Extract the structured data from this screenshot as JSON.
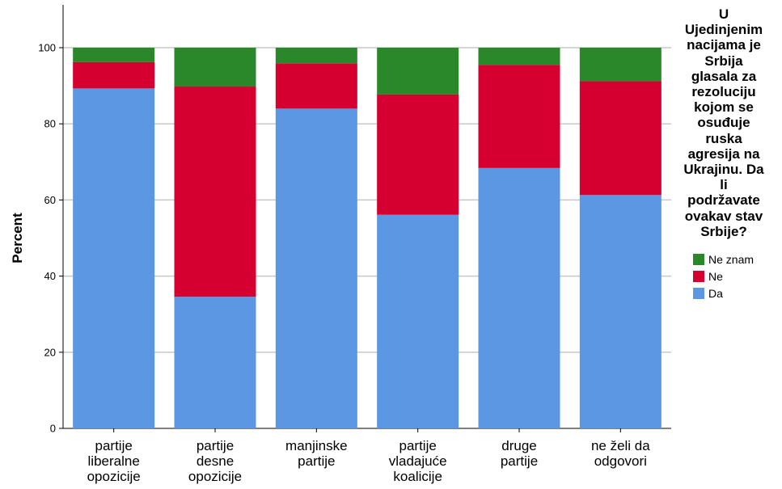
{
  "chart_data": {
    "type": "bar",
    "stacked": true,
    "categories": [
      [
        "partije",
        "liberalne",
        "opozicije"
      ],
      [
        "partije",
        "desne",
        "opozicije"
      ],
      [
        "manjinske",
        "partije"
      ],
      [
        "partije",
        "vladajuće",
        "koalicije"
      ],
      [
        "druge",
        "partije"
      ],
      [
        "ne želi da",
        "odgovori"
      ]
    ],
    "series": [
      {
        "name": "Da",
        "color": "#5b97e3",
        "values": [
          89.3,
          34.6,
          84.0,
          56.1,
          68.4,
          61.3
        ]
      },
      {
        "name": "Ne",
        "color": "#d5002f",
        "values": [
          6.9,
          55.2,
          11.9,
          31.6,
          27.1,
          29.9
        ]
      },
      {
        "name": "Ne znam",
        "color": "#2b882a",
        "values": [
          3.8,
          10.2,
          4.1,
          12.3,
          4.5,
          8.8
        ]
      }
    ],
    "ylabel": "Percent",
    "ylim": [
      0,
      100
    ],
    "yticks": [
      0,
      20,
      40,
      60,
      80,
      100
    ],
    "grid": true,
    "legend_placement": "right",
    "legend_title_lines": [
      "U",
      "Ujedinjenim",
      "nacijama je",
      "Srbija",
      "glasala za",
      "rezoluciju",
      "kojom se",
      "osuđuje",
      "ruska",
      "agresija na",
      "Ukrajinu. Da",
      "li",
      "podržavate",
      "ovakav stav",
      "Srbije?"
    ],
    "legend_entries": [
      "Ne znam",
      "Ne",
      "Da"
    ]
  }
}
